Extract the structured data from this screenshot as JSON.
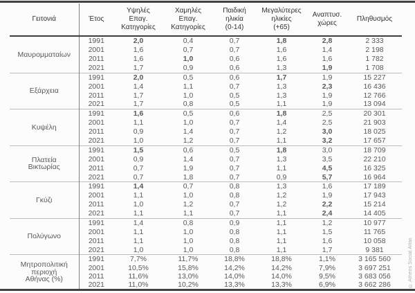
{
  "page": {
    "copyright": "© Athens Social Atlas",
    "accent_rule_color": "#424242",
    "group_separator_color": "#bcbcbc",
    "column_divider_color": "#7f7f7f"
  },
  "chart_data": {
    "type": "table",
    "columns": [
      "Γειτονιά",
      "Έτος",
      "Υψηλές\nΕπαγ.\nΚατηγορίες",
      "Χαμηλές\nΕπαγ.\nΚατηγορίες",
      "Παιδική\nηλικία\n(0-14)",
      "Μεγαλύτερες\nηλικίες\n(+65)",
      "Αναπτυσ.\nχώρες",
      "Πληθυσμός"
    ],
    "groups": [
      {
        "neighborhood": "Μαυρομματαίων",
        "rows": [
          {
            "year": "1991",
            "values": [
              "2,0",
              "0,4",
              "0,7",
              "1,8",
              "2,8",
              "2 333"
            ]
          },
          {
            "year": "2001",
            "values": [
              "1,6",
              "0,7",
              "0,7",
              "1,6",
              "1,4",
              "2 198"
            ]
          },
          {
            "year": "2011",
            "values": [
              "1,6",
              "1,0",
              "0,6",
              "1,6",
              "1,6",
              "1 782"
            ]
          },
          {
            "year": "2021",
            "values": [
              "1,7",
              "0,9",
              "0,6",
              "1,3",
              "1,9",
              "1 708"
            ]
          }
        ],
        "bold_cells": [
          [
            0,
            0
          ],
          [
            0,
            3
          ],
          [
            0,
            4
          ],
          [
            2,
            1
          ],
          [
            3,
            4
          ]
        ]
      },
      {
        "neighborhood": "Εξάρχεια",
        "rows": [
          {
            "year": "1991",
            "values": [
              "2,0",
              "0,5",
              "0,6",
              "1,7",
              "1,9",
              "15 227"
            ]
          },
          {
            "year": "2001",
            "values": [
              "1,4",
              "1,1",
              "0,7",
              "1,3",
              "2,3",
              "16 436"
            ]
          },
          {
            "year": "2011",
            "values": [
              "1,7",
              "1,0",
              "0,5",
              "1,3",
              "1,9",
              "12 766"
            ]
          },
          {
            "year": "2021",
            "values": [
              "1,7",
              "0,8",
              "0,5",
              "1,1",
              "1,9",
              "13 094"
            ]
          }
        ],
        "bold_cells": [
          [
            0,
            0
          ],
          [
            0,
            3
          ],
          [
            1,
            4
          ]
        ]
      },
      {
        "neighborhood": "Κυψέλη",
        "rows": [
          {
            "year": "1991",
            "values": [
              "1,6",
              "0,5",
              "0,6",
              "1,8",
              "2,5",
              "20 301"
            ]
          },
          {
            "year": "2001",
            "values": [
              "1,1",
              "1,0",
              "0,7",
              "1,4",
              "2,5",
              "21 903"
            ]
          },
          {
            "year": "2011",
            "values": [
              "0,9",
              "1,4",
              "0,7",
              "1,2",
              "3,0",
              "18 025"
            ]
          },
          {
            "year": "2021",
            "values": [
              "1,0",
              "1,2",
              "0,7",
              "1,1",
              "3,2",
              "17 657"
            ]
          }
        ],
        "bold_cells": [
          [
            0,
            0
          ],
          [
            0,
            3
          ],
          [
            2,
            4
          ],
          [
            3,
            4
          ]
        ]
      },
      {
        "neighborhood": "Πλατεία\nΒικτωρίας",
        "rows": [
          {
            "year": "1991",
            "values": [
              "1,5",
              "0,6",
              "0,5",
              "1,8",
              "3,0",
              "18 709"
            ]
          },
          {
            "year": "2001",
            "values": [
              "0,9",
              "1,4",
              "0,7",
              "1,3",
              "3,5",
              "22 210"
            ]
          },
          {
            "year": "2011",
            "values": [
              "0,7",
              "1,9",
              "0,7",
              "1,1",
              "4,5",
              "16 325"
            ]
          },
          {
            "year": "2021",
            "values": [
              "0,7",
              "1,8",
              "0,7",
              "0,9",
              "5,7",
              "16 964"
            ]
          }
        ],
        "bold_cells": [
          [
            0,
            0
          ],
          [
            0,
            3
          ],
          [
            2,
            4
          ],
          [
            3,
            4
          ]
        ]
      },
      {
        "neighborhood": "Γκύζι",
        "rows": [
          {
            "year": "1991",
            "values": [
              "1,4",
              "0,7",
              "0,8",
              "1,3",
              "1,6",
              "17 189"
            ]
          },
          {
            "year": "2001",
            "values": [
              "1,1",
              "1,0",
              "0,8",
              "1,2",
              "1,9",
              "17 943"
            ]
          },
          {
            "year": "2011",
            "values": [
              "1,0",
              "1,2",
              "0,7",
              "1,2",
              "2,2",
              "15 214"
            ]
          },
          {
            "year": "2021",
            "values": [
              "1,1",
              "1,1",
              "0,7",
              "1,1",
              "2,4",
              "14 405"
            ]
          }
        ],
        "bold_cells": [
          [
            0,
            0
          ],
          [
            2,
            4
          ],
          [
            3,
            4
          ]
        ]
      },
      {
        "neighborhood": "Πολύγωνο",
        "rows": [
          {
            "year": "1991",
            "values": [
              "1,4",
              "0,8",
              "0,9",
              "1,1",
              "1,2",
              "10 977"
            ]
          },
          {
            "year": "2001",
            "values": [
              "1,1",
              "1,0",
              "0,8",
              "1,1",
              "1,5",
              "11 765"
            ]
          },
          {
            "year": "2011",
            "values": [
              "1,1",
              "1,0",
              "0,8",
              "1,1",
              "1,6",
              "10 058"
            ]
          },
          {
            "year": "2021",
            "values": [
              "1,0",
              "1,0",
              "0,8",
              "1,1",
              "1,7",
              "9 381"
            ]
          }
        ],
        "bold_cells": []
      },
      {
        "neighborhood": "Μητροπολιτική\nπεριοχή\nΑθήνας (%)",
        "percent": true,
        "rows": [
          {
            "year": "1991",
            "values": [
              "7,7%",
              "11,7%",
              "18,8%",
              "18,8%",
              "1,1%",
              "3 165 560"
            ]
          },
          {
            "year": "2001",
            "values": [
              "10,5%",
              "15,8%",
              "14,2%",
              "14,2%",
              "7,9%",
              "3 697 251"
            ]
          },
          {
            "year": "2011",
            "values": [
              "11,6%",
              "13,0%",
              "14,0%",
              "14,0%",
              "9,5%",
              "3 683 056"
            ]
          },
          {
            "year": "2021",
            "values": [
              "11,0%",
              "10,2%",
              "13,3%",
              "13,3%",
              "6,9%",
              "3 662 286"
            ]
          }
        ],
        "bold_cells": []
      }
    ]
  }
}
